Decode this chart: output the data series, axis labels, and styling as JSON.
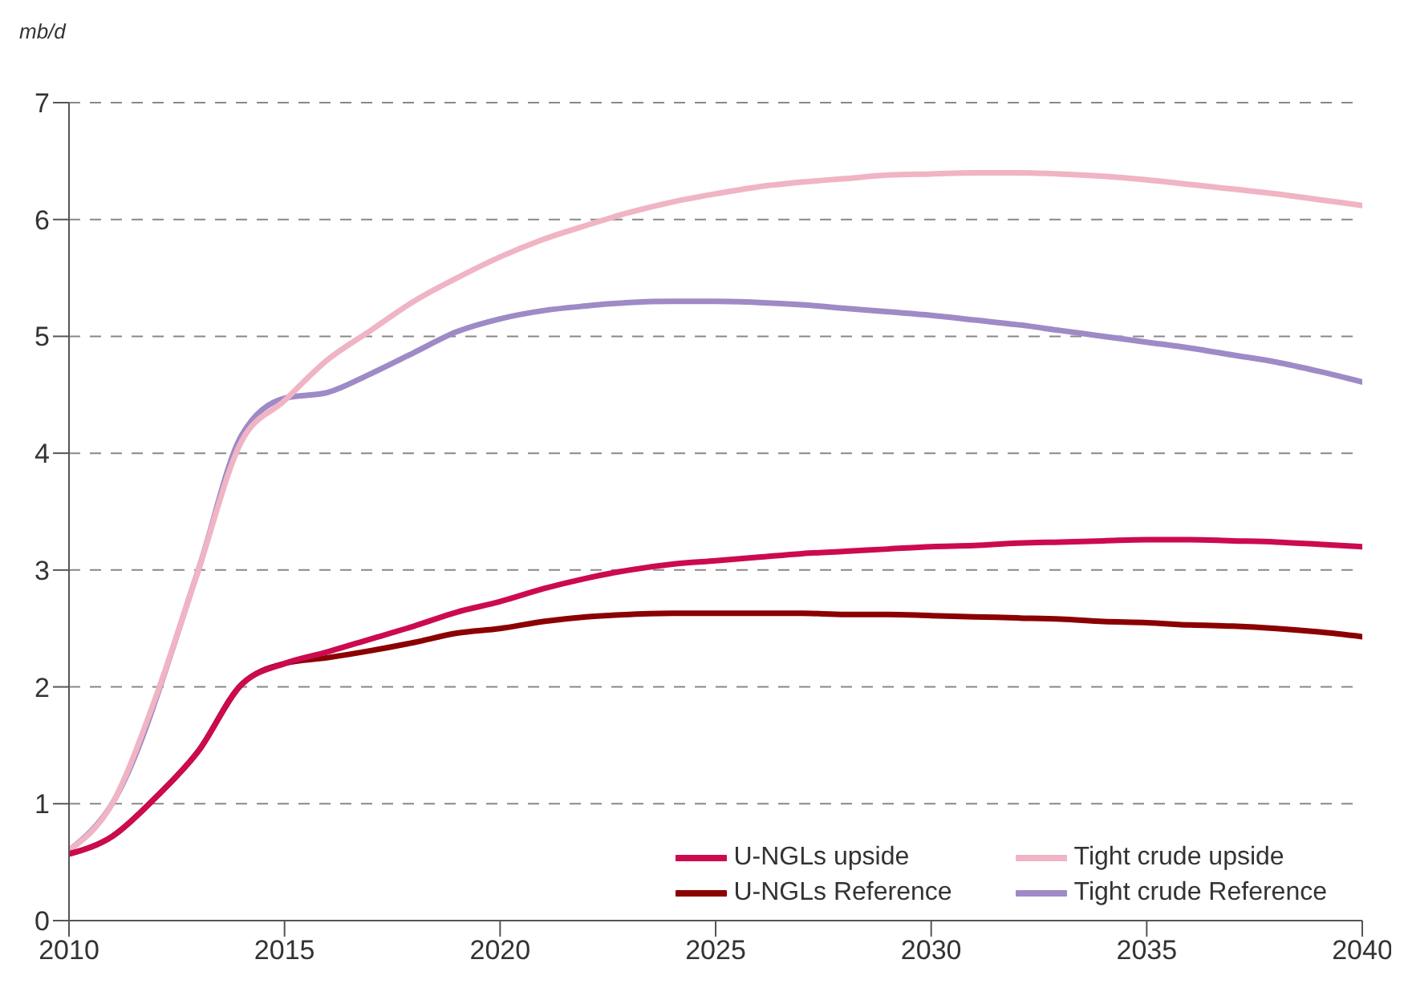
{
  "chart_data": {
    "type": "line",
    "ylabel": "mb/d",
    "x": [
      2010,
      2011,
      2012,
      2013,
      2014,
      2015,
      2016,
      2017,
      2018,
      2019,
      2020,
      2021,
      2022,
      2023,
      2024,
      2025,
      2026,
      2027,
      2028,
      2029,
      2030,
      2031,
      2032,
      2033,
      2034,
      2035,
      2036,
      2037,
      2038,
      2039,
      2040
    ],
    "series": [
      {
        "name": "U-NGLs upside",
        "color": "#cc0a50",
        "values": [
          0.57,
          0.72,
          1.05,
          1.45,
          2.02,
          2.2,
          2.3,
          2.41,
          2.52,
          2.64,
          2.73,
          2.84,
          2.93,
          3.0,
          3.05,
          3.08,
          3.11,
          3.14,
          3.16,
          3.18,
          3.2,
          3.21,
          3.23,
          3.24,
          3.25,
          3.26,
          3.26,
          3.25,
          3.24,
          3.22,
          3.2
        ]
      },
      {
        "name": "U-NGLs Reference",
        "color": "#8b0000",
        "values": [
          0.57,
          0.72,
          1.05,
          1.45,
          2.02,
          2.2,
          2.25,
          2.31,
          2.38,
          2.46,
          2.5,
          2.56,
          2.6,
          2.62,
          2.63,
          2.63,
          2.63,
          2.63,
          2.62,
          2.62,
          2.61,
          2.6,
          2.59,
          2.58,
          2.56,
          2.55,
          2.53,
          2.52,
          2.5,
          2.47,
          2.43
        ]
      },
      {
        "name": "Tight crude upside",
        "color": "#f0b4c4",
        "values": [
          0.6,
          1.0,
          1.9,
          3.0,
          4.1,
          4.45,
          4.8,
          5.05,
          5.3,
          5.5,
          5.68,
          5.83,
          5.95,
          6.06,
          6.15,
          6.22,
          6.28,
          6.32,
          6.35,
          6.38,
          6.39,
          6.4,
          6.4,
          6.39,
          6.37,
          6.34,
          6.3,
          6.26,
          6.22,
          6.17,
          6.12
        ]
      },
      {
        "name": "Tight crude Reference",
        "color": "#9e8ac6",
        "values": [
          0.6,
          1.0,
          null,
          3.0,
          4.15,
          4.47,
          4.52,
          4.68,
          4.86,
          5.04,
          5.15,
          5.22,
          5.26,
          5.29,
          5.3,
          5.3,
          5.29,
          5.27,
          5.24,
          5.21,
          5.18,
          5.14,
          5.1,
          5.05,
          5.0,
          4.95,
          4.9,
          4.84,
          4.78,
          4.7,
          4.61
        ]
      }
    ],
    "xlim": [
      2010,
      2040
    ],
    "xticks": [
      2010,
      2015,
      2020,
      2025,
      2030,
      2035,
      2040
    ],
    "ylim": [
      0,
      7
    ],
    "yticks": [
      0,
      1,
      2,
      3,
      4,
      5,
      6,
      7
    ],
    "grid": "y",
    "legend": "bottom right",
    "marker": "none",
    "line_style": "solid"
  }
}
